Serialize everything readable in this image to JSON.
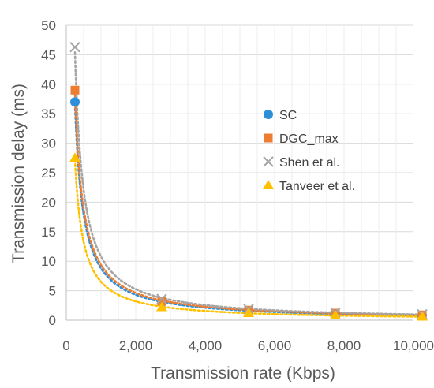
{
  "chart_data": {
    "type": "scatter",
    "title": "",
    "xlabel": "Transmission rate (Kbps)",
    "ylabel": "Transmission delay (ms)",
    "xlim": [
      0,
      10000
    ],
    "ylim": [
      0,
      50
    ],
    "xticks": [
      0,
      2000,
      4000,
      6000,
      8000,
      10000
    ],
    "xtick_labels": [
      "0",
      "2,000",
      "4,000",
      "6,000",
      "8,000",
      "10,000"
    ],
    "yticks": [
      0,
      5,
      10,
      15,
      20,
      25,
      30,
      35,
      40,
      45,
      50
    ],
    "ytick_labels": [
      "0",
      "5",
      "10",
      "15",
      "20",
      "25",
      "30",
      "35",
      "40",
      "45",
      "50"
    ],
    "grid": "horizontal",
    "legend_position": "right",
    "trendline": "dotted power fit",
    "series": [
      {
        "name": "SC",
        "color": "#2E8FD9",
        "marker": "circle",
        "x": [
          250,
          2750,
          5250,
          7750,
          10250
        ],
        "y": [
          37.0,
          3.0,
          1.6,
          1.1,
          0.8
        ]
      },
      {
        "name": "DGC_max",
        "color": "#ED7D31",
        "marker": "square",
        "x": [
          250,
          2750,
          5250,
          7750,
          10250
        ],
        "y": [
          39.0,
          3.2,
          1.7,
          1.2,
          0.9
        ]
      },
      {
        "name": "Shen et al.",
        "color": "#A5A5A5",
        "marker": "x",
        "x": [
          250,
          2750,
          5250,
          7750,
          10250
        ],
        "y": [
          46.3,
          3.6,
          1.9,
          1.3,
          1.0
        ]
      },
      {
        "name": "Tanveer et al.",
        "color": "#FFC000",
        "marker": "triangle",
        "x": [
          250,
          2750,
          5250,
          7750,
          10250
        ],
        "y": [
          27.5,
          2.2,
          1.2,
          0.8,
          0.6
        ]
      }
    ]
  }
}
